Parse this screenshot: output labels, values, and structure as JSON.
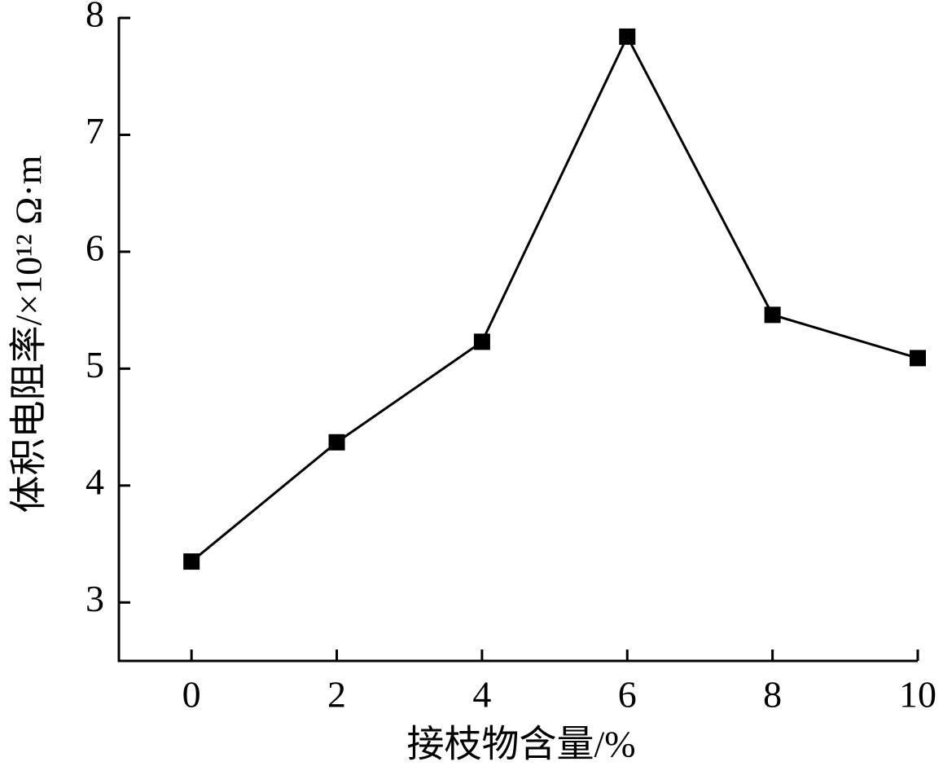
{
  "chart_data": {
    "type": "line",
    "x_label": "接枝物含量/%",
    "y_label": "体积电阻率/×10¹² Ω·m",
    "x": [
      0,
      2,
      4,
      6,
      8,
      10
    ],
    "values": [
      3.35,
      4.37,
      5.23,
      7.84,
      5.46,
      5.09
    ],
    "color": "#000000",
    "xlim": [
      -1,
      10
    ],
    "xticks": [
      0,
      2,
      4,
      6,
      8,
      10
    ],
    "ylim": [
      2.5,
      8
    ],
    "yticks": [
      3,
      4,
      5,
      6,
      7,
      8
    ],
    "grid": false
  }
}
